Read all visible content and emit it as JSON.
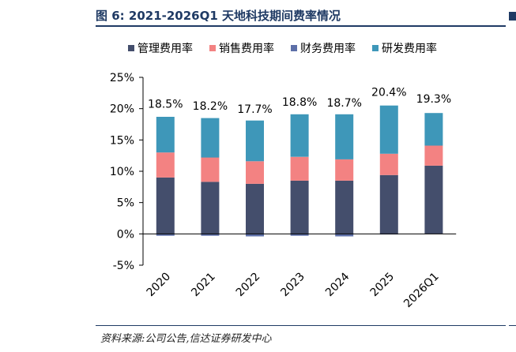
{
  "figure": {
    "title": "图 6:  2021-2026Q1 天地科技期间费率情况",
    "source": "资料来源:公司公告,信达证券研发中心"
  },
  "chart_data": {
    "type": "bar",
    "stacked": true,
    "categories": [
      "2020",
      "2021",
      "2022",
      "2023",
      "2024",
      "2025",
      "2026Q1"
    ],
    "series": [
      {
        "name": "管理费用率",
        "color": "#444e6c",
        "values": [
          9.0,
          8.3,
          8.0,
          8.5,
          8.5,
          9.4,
          10.9
        ]
      },
      {
        "name": "销售费用率",
        "color": "#f38282",
        "values": [
          4.0,
          3.9,
          3.6,
          3.8,
          3.4,
          3.4,
          3.2
        ]
      },
      {
        "name": "财务费用率",
        "color": "#5d6fa8",
        "values": [
          -0.3,
          -0.3,
          -0.4,
          -0.3,
          -0.4,
          -0.1,
          0.0
        ]
      },
      {
        "name": "研发费用率",
        "color": "#3e97b9",
        "values": [
          5.7,
          6.3,
          6.5,
          6.8,
          7.2,
          7.7,
          5.2
        ]
      }
    ],
    "totals": [
      18.5,
      18.2,
      17.7,
      18.8,
      18.7,
      20.4,
      19.3
    ],
    "total_labels": [
      "18.5%",
      "18.2%",
      "17.7%",
      "18.8%",
      "18.7%",
      "20.4%",
      "19.3%"
    ],
    "ylim": [
      -5,
      25
    ],
    "yticks": [
      -5,
      0,
      5,
      10,
      15,
      20,
      25
    ],
    "ytick_labels": [
      "-5%",
      "0%",
      "5%",
      "10%",
      "15%",
      "20%",
      "25%"
    ],
    "legend_position": "top",
    "grid": false
  }
}
